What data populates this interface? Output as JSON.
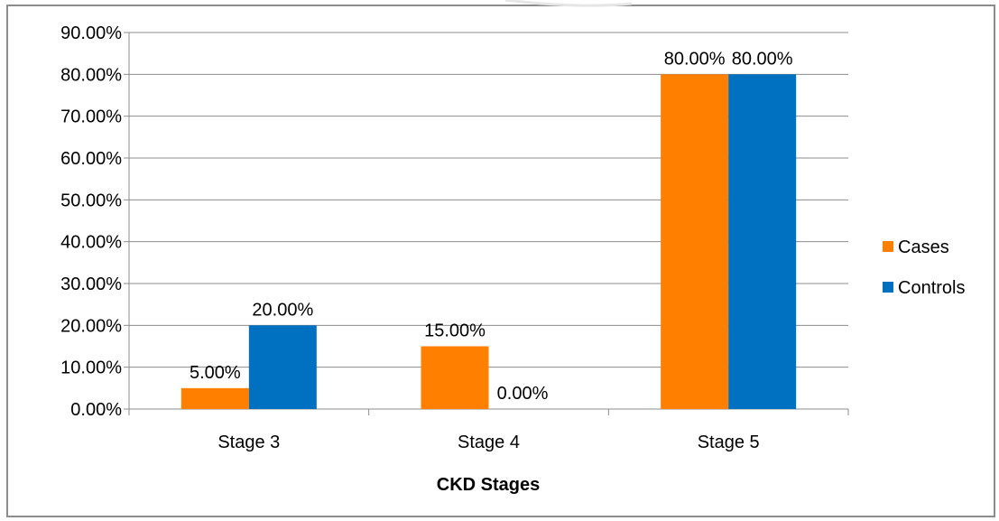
{
  "chart_data": {
    "type": "bar",
    "categories": [
      "Stage 3",
      "Stage 4",
      "Stage 5"
    ],
    "series": [
      {
        "name": "Cases",
        "color": "#FF7F00",
        "values": [
          5,
          15,
          80
        ],
        "labels": [
          "5.00%",
          "15.00%",
          "80.00%"
        ]
      },
      {
        "name": "Controls",
        "color": "#0070C0",
        "values": [
          20,
          0,
          80
        ],
        "labels": [
          "20.00%",
          "0.00%",
          "80.00%"
        ]
      }
    ],
    "xlabel": "CKD Stages",
    "ylabel": "",
    "ylim": [
      0,
      90
    ],
    "yticks": [
      "0.00%",
      "10.00%",
      "20.00%",
      "30.00%",
      "40.00%",
      "50.00%",
      "60.00%",
      "70.00%",
      "80.00%",
      "90.00%"
    ],
    "grid": true,
    "legend_position": "right"
  }
}
